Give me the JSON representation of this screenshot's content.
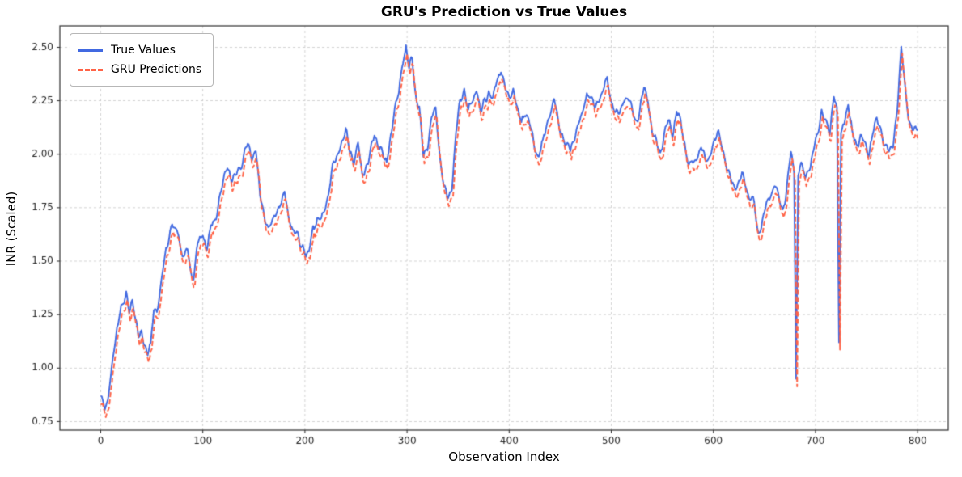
{
  "chart_data": {
    "type": "line",
    "title": "GRU's Prediction vs True Values",
    "xlabel": "Observation Index",
    "ylabel": "INR (Scaled)",
    "xlim": [
      -40,
      830
    ],
    "ylim": [
      0.71,
      2.6
    ],
    "xticks": [
      0,
      100,
      200,
      300,
      400,
      500,
      600,
      700,
      800
    ],
    "yticks": [
      0.75,
      1.0,
      1.25,
      1.5,
      1.75,
      2.0,
      2.25,
      2.5
    ],
    "grid": true,
    "grid_style": "dashed",
    "legend_position": "upper-left",
    "colors": {
      "true_values": "#4169e1",
      "gru_predictions": "#ff6347",
      "grid": "#c9c9c9",
      "axes": "#2b2b2b",
      "tick_text": "#262626"
    },
    "series": [
      {
        "name": "True Values",
        "style": "solid",
        "color": "#4169e1",
        "keypoints": [
          [
            0,
            0.88
          ],
          [
            2,
            0.84
          ],
          [
            4,
            0.82
          ],
          [
            7,
            0.86
          ],
          [
            10,
            0.96
          ],
          [
            13,
            1.08
          ],
          [
            16,
            1.2
          ],
          [
            19,
            1.27
          ],
          [
            22,
            1.3
          ],
          [
            25,
            1.35
          ],
          [
            28,
            1.27
          ],
          [
            31,
            1.32
          ],
          [
            34,
            1.2
          ],
          [
            37,
            1.15
          ],
          [
            40,
            1.19
          ],
          [
            43,
            1.12
          ],
          [
            46,
            1.05
          ],
          [
            49,
            1.1
          ],
          [
            52,
            1.3
          ],
          [
            55,
            1.27
          ],
          [
            58,
            1.35
          ],
          [
            61,
            1.45
          ],
          [
            64,
            1.55
          ],
          [
            67,
            1.62
          ],
          [
            70,
            1.65
          ],
          [
            73,
            1.62
          ],
          [
            76,
            1.64
          ],
          [
            79,
            1.55
          ],
          [
            82,
            1.5
          ],
          [
            85,
            1.55
          ],
          [
            88,
            1.45
          ],
          [
            91,
            1.44
          ],
          [
            94,
            1.55
          ],
          [
            97,
            1.6
          ],
          [
            100,
            1.62
          ],
          [
            104,
            1.55
          ],
          [
            108,
            1.65
          ],
          [
            112,
            1.7
          ],
          [
            116,
            1.78
          ],
          [
            120,
            1.85
          ],
          [
            124,
            1.95
          ],
          [
            128,
            1.88
          ],
          [
            132,
            1.9
          ],
          [
            136,
            1.95
          ],
          [
            140,
            2.0
          ],
          [
            144,
            2.05
          ],
          [
            148,
            1.98
          ],
          [
            152,
            2.02
          ],
          [
            156,
            1.8
          ],
          [
            160,
            1.72
          ],
          [
            164,
            1.65
          ],
          [
            168,
            1.68
          ],
          [
            172,
            1.72
          ],
          [
            176,
            1.78
          ],
          [
            180,
            1.8
          ],
          [
            184,
            1.7
          ],
          [
            188,
            1.65
          ],
          [
            192,
            1.62
          ],
          [
            196,
            1.58
          ],
          [
            200,
            1.55
          ],
          [
            204,
            1.52
          ],
          [
            208,
            1.65
          ],
          [
            212,
            1.7
          ],
          [
            216,
            1.68
          ],
          [
            220,
            1.75
          ],
          [
            224,
            1.85
          ],
          [
            228,
            1.95
          ],
          [
            232,
            2.0
          ],
          [
            236,
            2.05
          ],
          [
            240,
            2.1
          ],
          [
            244,
            2.0
          ],
          [
            248,
            1.98
          ],
          [
            252,
            2.05
          ],
          [
            256,
            1.9
          ],
          [
            260,
            1.95
          ],
          [
            264,
            2.0
          ],
          [
            268,
            2.1
          ],
          [
            272,
            2.05
          ],
          [
            276,
            2.0
          ],
          [
            280,
            1.95
          ],
          [
            284,
            2.1
          ],
          [
            288,
            2.2
          ],
          [
            292,
            2.3
          ],
          [
            296,
            2.45
          ],
          [
            299,
            2.5
          ],
          [
            302,
            2.4
          ],
          [
            305,
            2.45
          ],
          [
            308,
            2.3
          ],
          [
            312,
            2.2
          ],
          [
            316,
            2.0
          ],
          [
            320,
            2.05
          ],
          [
            324,
            2.15
          ],
          [
            328,
            2.2
          ],
          [
            332,
            2.0
          ],
          [
            336,
            1.85
          ],
          [
            340,
            1.79
          ],
          [
            344,
            1.85
          ],
          [
            348,
            2.1
          ],
          [
            352,
            2.25
          ],
          [
            356,
            2.3
          ],
          [
            360,
            2.2
          ],
          [
            364,
            2.25
          ],
          [
            368,
            2.3
          ],
          [
            372,
            2.2
          ],
          [
            376,
            2.25
          ],
          [
            380,
            2.3
          ],
          [
            384,
            2.25
          ],
          [
            388,
            2.35
          ],
          [
            392,
            2.4
          ],
          [
            396,
            2.3
          ],
          [
            400,
            2.25
          ],
          [
            404,
            2.3
          ],
          [
            408,
            2.2
          ],
          [
            412,
            2.15
          ],
          [
            416,
            2.2
          ],
          [
            420,
            2.15
          ],
          [
            424,
            2.05
          ],
          [
            428,
            2.0
          ],
          [
            432,
            2.05
          ],
          [
            436,
            2.1
          ],
          [
            440,
            2.2
          ],
          [
            444,
            2.25
          ],
          [
            448,
            2.15
          ],
          [
            452,
            2.1
          ],
          [
            456,
            2.05
          ],
          [
            460,
            2.0
          ],
          [
            464,
            2.1
          ],
          [
            468,
            2.15
          ],
          [
            472,
            2.2
          ],
          [
            476,
            2.3
          ],
          [
            480,
            2.25
          ],
          [
            484,
            2.2
          ],
          [
            488,
            2.25
          ],
          [
            492,
            2.3
          ],
          [
            496,
            2.35
          ],
          [
            500,
            2.25
          ],
          [
            504,
            2.2
          ],
          [
            508,
            2.2
          ],
          [
            512,
            2.25
          ],
          [
            516,
            2.25
          ],
          [
            520,
            2.2
          ],
          [
            524,
            2.15
          ],
          [
            528,
            2.2
          ],
          [
            532,
            2.3
          ],
          [
            536,
            2.25
          ],
          [
            540,
            2.1
          ],
          [
            544,
            2.05
          ],
          [
            548,
            2.0
          ],
          [
            552,
            2.1
          ],
          [
            556,
            2.15
          ],
          [
            560,
            2.1
          ],
          [
            564,
            2.2
          ],
          [
            568,
            2.15
          ],
          [
            572,
            2.05
          ],
          [
            576,
            1.95
          ],
          [
            580,
            1.95
          ],
          [
            584,
            2.0
          ],
          [
            588,
            2.05
          ],
          [
            592,
            1.95
          ],
          [
            596,
            2.0
          ],
          [
            600,
            2.05
          ],
          [
            604,
            2.1
          ],
          [
            608,
            2.05
          ],
          [
            612,
            1.95
          ],
          [
            616,
            1.9
          ],
          [
            620,
            1.85
          ],
          [
            624,
            1.85
          ],
          [
            628,
            1.9
          ],
          [
            632,
            1.85
          ],
          [
            636,
            1.8
          ],
          [
            640,
            1.75
          ],
          [
            644,
            1.64
          ],
          [
            648,
            1.7
          ],
          [
            652,
            1.75
          ],
          [
            656,
            1.8
          ],
          [
            660,
            1.85
          ],
          [
            664,
            1.8
          ],
          [
            668,
            1.75
          ],
          [
            672,
            1.85
          ],
          [
            676,
            2.0
          ],
          [
            679,
            1.92
          ],
          [
            681,
            0.95
          ],
          [
            683,
            1.9
          ],
          [
            686,
            1.95
          ],
          [
            690,
            1.9
          ],
          [
            694,
            1.95
          ],
          [
            698,
            2.0
          ],
          [
            702,
            2.1
          ],
          [
            706,
            2.2
          ],
          [
            710,
            2.15
          ],
          [
            714,
            2.1
          ],
          [
            718,
            2.3
          ],
          [
            721,
            2.2
          ],
          [
            723,
            1.12
          ],
          [
            725,
            2.1
          ],
          [
            728,
            2.15
          ],
          [
            732,
            2.25
          ],
          [
            736,
            2.1
          ],
          [
            740,
            2.05
          ],
          [
            744,
            2.1
          ],
          [
            748,
            2.05
          ],
          [
            752,
            2.0
          ],
          [
            756,
            2.1
          ],
          [
            760,
            2.15
          ],
          [
            764,
            2.1
          ],
          [
            768,
            2.05
          ],
          [
            772,
            2.0
          ],
          [
            776,
            2.05
          ],
          [
            780,
            2.2
          ],
          [
            784,
            2.5
          ],
          [
            788,
            2.3
          ],
          [
            792,
            2.15
          ],
          [
            796,
            2.1
          ],
          [
            800,
            2.12
          ]
        ]
      },
      {
        "name": "GRU Predictions",
        "style": "dashed",
        "color": "#ff6347",
        "derived_from": "True Values",
        "offset": -0.035,
        "lag": 1
      }
    ],
    "noise": {
      "seed": 7,
      "amplitude": 0.022
    }
  }
}
